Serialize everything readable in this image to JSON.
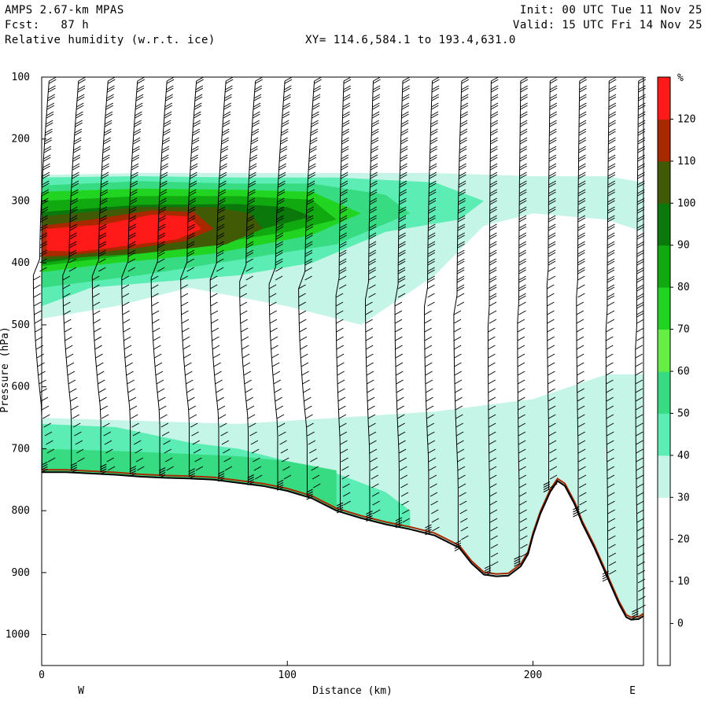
{
  "header": {
    "model": "AMPS 2.67-km MPAS",
    "forecast": "Fcst:   87 h",
    "field": "Relative humidity (w.r.t. ice)",
    "init": "Init: 00 UTC Tue 11 Nov 25",
    "valid": "Valid: 15 UTC Fri 14 Nov 25",
    "xy_range": "XY= 114.6,584.1 to 193.4,631.0"
  },
  "chart_data": {
    "type": "heatmap",
    "title": "Relative humidity (w.r.t. ice)",
    "xlabel": "Distance (km)",
    "ylabel": "Pressure (hPa)",
    "xlim": [
      0,
      245
    ],
    "ylim": [
      1050,
      100
    ],
    "x_ticks": [
      0,
      100,
      200
    ],
    "y_ticks": [
      100,
      200,
      300,
      400,
      500,
      600,
      700,
      800,
      900,
      1000
    ],
    "left_label": "W",
    "right_label": "E",
    "colorbar": {
      "unit": "%",
      "levels": [
        0,
        10,
        20,
        30,
        40,
        50,
        60,
        70,
        80,
        90,
        100,
        110,
        120
      ],
      "colors": [
        "#ffffff",
        "#ffffff",
        "#ffffff",
        "#ffffff",
        "#c4f5e6",
        "#5cedb4",
        "#37dc82",
        "#66ee44",
        "#22d422",
        "#10aa10",
        "#0b780b",
        "#405a06",
        "#a82800",
        "#ff1a1a"
      ]
    },
    "terrain_surface": {
      "x": [
        0,
        10,
        20,
        30,
        40,
        50,
        60,
        70,
        80,
        90,
        100,
        110,
        120,
        130,
        140,
        150,
        160,
        170,
        175,
        180,
        185,
        190,
        195,
        198,
        200,
        203,
        207,
        210,
        213,
        217,
        220,
        225,
        230,
        235,
        238,
        240,
        243,
        245
      ],
      "p": [
        738,
        738,
        740,
        742,
        745,
        747,
        748,
        750,
        755,
        760,
        768,
        780,
        800,
        812,
        822,
        830,
        840,
        860,
        885,
        903,
        906,
        905,
        890,
        870,
        840,
        805,
        770,
        752,
        760,
        790,
        820,
        860,
        905,
        950,
        972,
        976,
        975,
        970
      ]
    },
    "rh_regions": [
      {
        "name": "rh_30",
        "level": 30,
        "color": "#c4f5e6",
        "x": [
          0,
          40,
          80,
          120,
          160,
          200,
          230,
          245,
          245,
          230,
          200,
          180,
          160,
          130,
          100,
          60,
          30,
          0
        ],
        "p": [
          258,
          255,
          255,
          255,
          255,
          260,
          260,
          270,
          350,
          330,
          320,
          340,
          420,
          500,
          470,
          440,
          470,
          490
        ]
      },
      {
        "name": "rh_30_lower",
        "level": 30,
        "color": "#c4f5e6",
        "x": [
          0,
          40,
          80,
          120,
          160,
          200,
          230,
          245,
          245,
          0
        ],
        "p": [
          650,
          655,
          660,
          650,
          640,
          620,
          580,
          580,
          1000,
          1000
        ]
      },
      {
        "name": "rh_40",
        "level": 40,
        "color": "#5cedb4",
        "x": [
          0,
          40,
          80,
          120,
          160,
          180,
          170,
          140,
          110,
          80,
          50,
          20,
          0
        ],
        "p": [
          262,
          260,
          262,
          262,
          270,
          300,
          330,
          350,
          400,
          420,
          430,
          440,
          470
        ]
      },
      {
        "name": "rh_40_lower",
        "level": 40,
        "color": "#5cedb4",
        "x": [
          0,
          30,
          60,
          80,
          100,
          120,
          140,
          150,
          150,
          0
        ],
        "p": [
          660,
          665,
          690,
          700,
          720,
          740,
          770,
          800,
          1000,
          1000
        ]
      },
      {
        "name": "rh_60",
        "level": 60,
        "color": "#37dc82",
        "x": [
          0,
          40,
          80,
          110,
          140,
          150,
          120,
          80,
          40,
          0
        ],
        "p": [
          275,
          268,
          272,
          272,
          290,
          320,
          370,
          395,
          420,
          440
        ]
      },
      {
        "name": "rh_60_lower",
        "level": 60,
        "color": "#37dc82",
        "x": [
          0,
          40,
          80,
          100,
          120,
          120,
          0
        ],
        "p": [
          700,
          705,
          712,
          720,
          735,
          1000,
          1000
        ]
      },
      {
        "name": "rh_80",
        "level": 80,
        "color": "#22d422",
        "x": [
          0,
          40,
          80,
          110,
          130,
          110,
          70,
          30,
          0
        ],
        "p": [
          285,
          280,
          282,
          285,
          320,
          355,
          385,
          400,
          415
        ]
      },
      {
        "name": "rh_90",
        "level": 90,
        "color": "#10aa10",
        "x": [
          0,
          40,
          80,
          110,
          120,
          100,
          60,
          20,
          0
        ],
        "p": [
          300,
          292,
          292,
          298,
          330,
          350,
          375,
          395,
          405
        ]
      },
      {
        "name": "rh_100",
        "level": 100,
        "color": "#0b780b",
        "x": [
          0,
          40,
          80,
          100,
          110,
          90,
          50,
          10,
          0
        ],
        "p": [
          318,
          306,
          305,
          310,
          325,
          345,
          370,
          395,
          400
        ]
      },
      {
        "name": "rh_110",
        "level": 110,
        "color": "#405a06",
        "x": [
          0,
          40,
          70,
          85,
          90,
          75,
          40,
          0
        ],
        "p": [
          325,
          310,
          310,
          320,
          345,
          370,
          385,
          395
        ]
      },
      {
        "name": "rh_120",
        "level": 120,
        "color": "#a82800",
        "x": [
          0,
          20,
          45,
          62,
          70,
          58,
          35,
          10,
          0
        ],
        "p": [
          340,
          330,
          315,
          318,
          345,
          365,
          378,
          388,
          390
        ]
      },
      {
        "name": "rh_130",
        "level": 130,
        "color": "#ff1a1a",
        "x": [
          2,
          25,
          45,
          60,
          65,
          55,
          35,
          15,
          2
        ],
        "p": [
          345,
          338,
          322,
          325,
          345,
          362,
          372,
          382,
          380
        ]
      }
    ],
    "wind_barb_columns_km": [
      3,
      15,
      27,
      39,
      51,
      63,
      75,
      87,
      99,
      111,
      123,
      135,
      147,
      159,
      171,
      183,
      195,
      207,
      219,
      231,
      243
    ]
  }
}
